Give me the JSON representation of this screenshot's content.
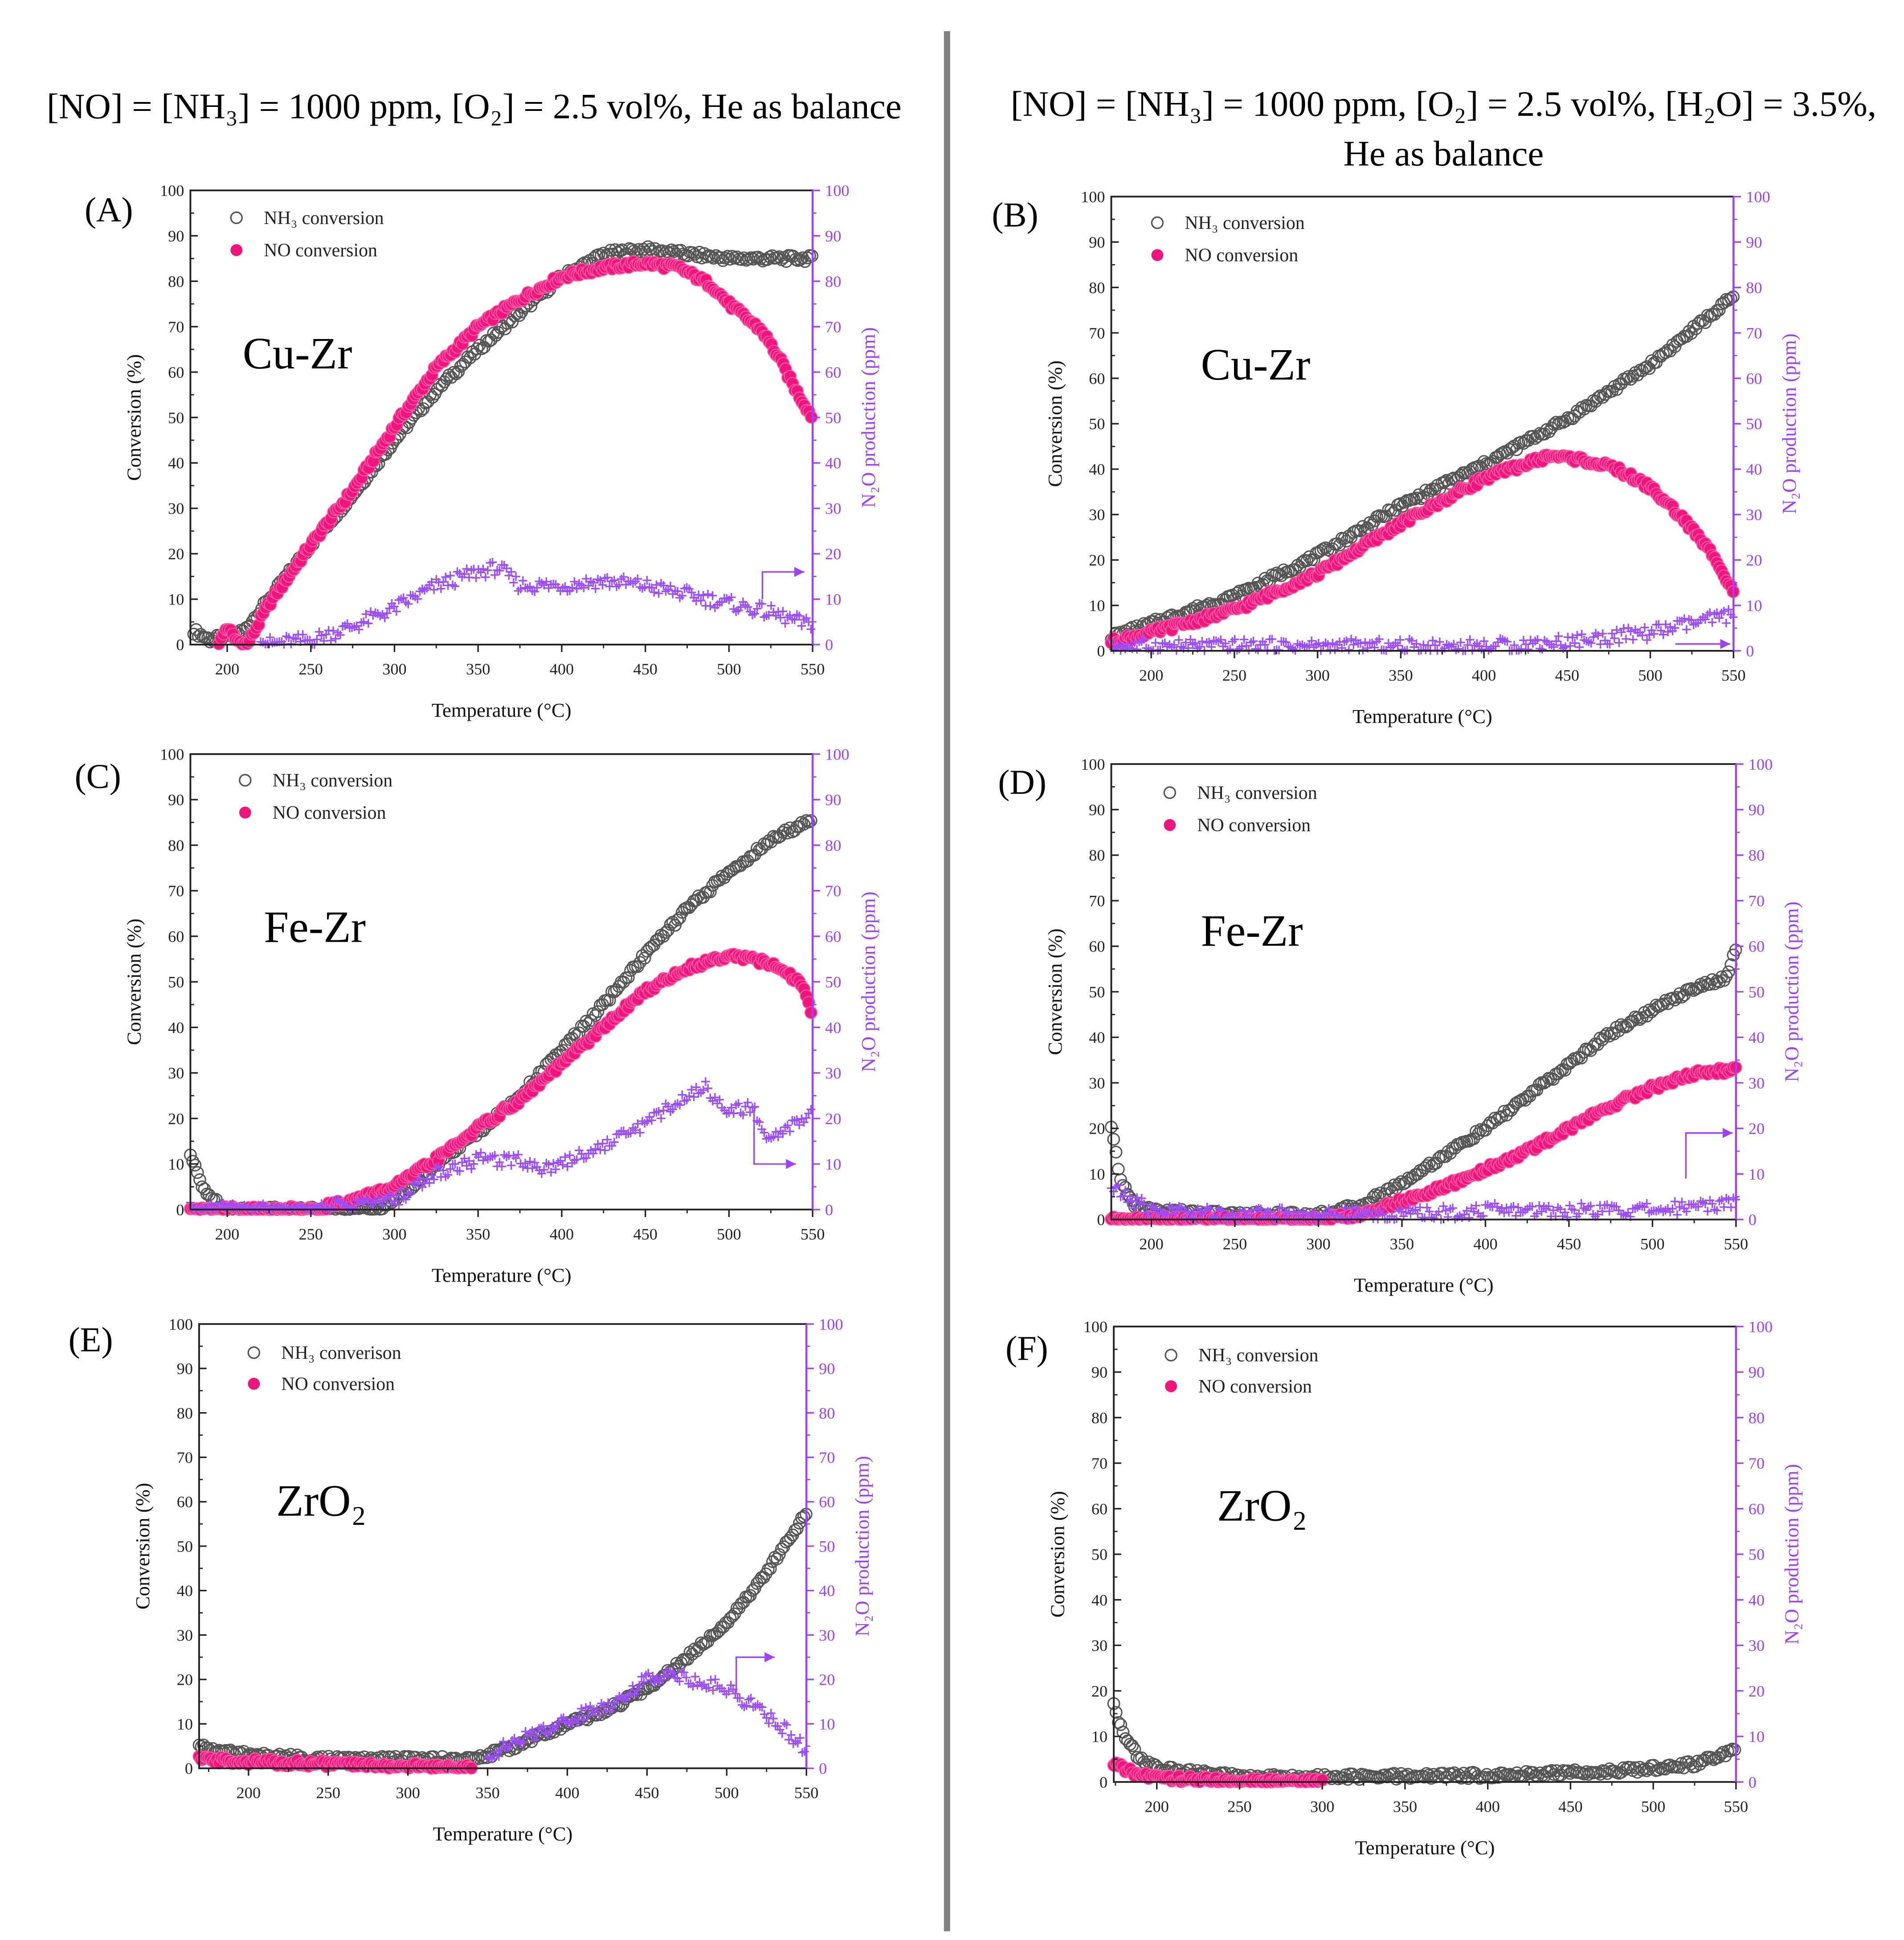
{
  "headers": {
    "left": "[NO] = [NH₃] = 1000 ppm, [O₂] = 2.5 vol%, He as balance",
    "right_line1": "[NO] = [NH₃] = 1000 ppm, [O₂] = 2.5 vol%, [H₂O] = 3.5%,",
    "right_line2": "He as balance"
  },
  "colors": {
    "nh3": "#555555",
    "no": "#f0157d",
    "n2o": "#9b4dff",
    "right_axis": "#a040ff",
    "divider": "#808080"
  },
  "chart_data": [
    {
      "id": "A",
      "type": "scatter",
      "label": "(A)",
      "catalyst": "Cu-Zr",
      "xlabel": "Temperature (°C)",
      "ylabel": "Conversion (%)",
      "y2label": "N₂O production (ppm)",
      "legend": [
        "NH₃ conversion",
        "NO conversion"
      ],
      "xlim": [
        178,
        550
      ],
      "ylim": [
        0,
        100
      ],
      "y2lim": [
        0,
        100
      ],
      "xticks": [
        200,
        250,
        300,
        350,
        400,
        450,
        500,
        550
      ],
      "yticks": [
        0,
        10,
        20,
        30,
        40,
        50,
        60,
        70,
        80,
        90,
        100
      ],
      "series": [
        {
          "name": "NH3 conversion",
          "x": [
            180,
            190,
            200,
            210,
            225,
            250,
            275,
            300,
            325,
            350,
            375,
            400,
            425,
            450,
            475,
            500,
            550
          ],
          "y": [
            3,
            1,
            2,
            3,
            10,
            22,
            33,
            45,
            56,
            65,
            73,
            81,
            86,
            87,
            86,
            85,
            85
          ]
        },
        {
          "name": "NO conversion",
          "x": [
            195,
            200,
            205,
            212,
            225,
            250,
            275,
            300,
            325,
            350,
            375,
            400,
            425,
            450,
            470,
            490,
            500,
            520,
            530,
            540,
            550
          ],
          "y": [
            0,
            4,
            1,
            0,
            9,
            22,
            34,
            48,
            61,
            70,
            76,
            81,
            83,
            84,
            83,
            79,
            75,
            69,
            63,
            56,
            50
          ]
        },
        {
          "name": "N2O production",
          "x": [
            220,
            250,
            275,
            300,
            325,
            350,
            362,
            375,
            400,
            425,
            450,
            475,
            500,
            525,
            550
          ],
          "y": [
            0,
            1,
            4,
            8,
            13,
            16,
            17,
            13,
            13,
            14,
            13,
            11,
            9,
            7,
            4
          ]
        }
      ]
    },
    {
      "id": "B",
      "type": "scatter",
      "label": "(B)",
      "catalyst": "Cu-Zr",
      "xlabel": "Temperature (°C)",
      "ylabel": "Conversion (%)",
      "y2label": "N₂O production (ppm)",
      "legend": [
        "NH₃ conversion",
        "NO conversion"
      ],
      "xlim": [
        176,
        550
      ],
      "ylim": [
        0,
        100
      ],
      "y2lim": [
        0,
        100
      ],
      "xticks": [
        200,
        250,
        300,
        350,
        400,
        450,
        500,
        550
      ],
      "yticks": [
        0,
        10,
        20,
        30,
        40,
        50,
        60,
        70,
        80,
        90,
        100
      ],
      "series": [
        {
          "name": "NH3 conversion",
          "x": [
            176,
            200,
            250,
            300,
            350,
            400,
            450,
            500,
            550
          ],
          "y": [
            3,
            6,
            12,
            21,
            32,
            41,
            51,
            63,
            78
          ]
        },
        {
          "name": "NO conversion",
          "x": [
            176,
            200,
            250,
            300,
            350,
            400,
            440,
            460,
            480,
            500,
            520,
            540,
            550
          ],
          "y": [
            2,
            4,
            9,
            17,
            28,
            38,
            43,
            42,
            40,
            36,
            29,
            20,
            13
          ]
        },
        {
          "name": "N2O production",
          "x": [
            176,
            300,
            400,
            450,
            500,
            550
          ],
          "y": [
            1,
            1,
            1,
            2,
            4,
            8
          ]
        }
      ]
    },
    {
      "id": "C",
      "type": "scatter",
      "label": "(C)",
      "catalyst": "Fe-Zr",
      "xlabel": "Temperature (°C)",
      "ylabel": "Conversion (%)",
      "y2label": "N₂O production (ppm)",
      "legend": [
        "NH₃ conversion",
        "NO conversion"
      ],
      "xlim": [
        178,
        550
      ],
      "ylim": [
        0,
        100
      ],
      "y2lim": [
        0,
        100
      ],
      "xticks": [
        200,
        250,
        300,
        350,
        400,
        450,
        500,
        550
      ],
      "yticks": [
        0,
        10,
        20,
        30,
        40,
        50,
        60,
        70,
        80,
        90,
        100
      ],
      "series": [
        {
          "name": "NH3 conversion",
          "x": [
            178,
            185,
            195,
            200,
            250,
            290,
            300,
            325,
            350,
            375,
            400,
            425,
            450,
            475,
            500,
            525,
            550
          ],
          "y": [
            12,
            5,
            1,
            0,
            0,
            0,
            2,
            10,
            17,
            25,
            35,
            45,
            56,
            66,
            74,
            81,
            86
          ]
        },
        {
          "name": "NO conversion",
          "x": [
            178,
            250,
            275,
            300,
            325,
            350,
            375,
            400,
            425,
            450,
            475,
            500,
            515,
            530,
            545,
            550
          ],
          "y": [
            0,
            0,
            2,
            5,
            11,
            18,
            24,
            32,
            40,
            48,
            53,
            56,
            55,
            53,
            49,
            42
          ]
        },
        {
          "name": "N2O production",
          "x": [
            178,
            250,
            300,
            325,
            350,
            375,
            390,
            425,
            450,
            475,
            485,
            500,
            515,
            525,
            535,
            550
          ],
          "y": [
            0,
            0,
            2,
            8,
            11,
            11,
            9,
            14,
            19,
            25,
            27,
            22,
            22,
            15,
            18,
            21
          ]
        }
      ]
    },
    {
      "id": "D",
      "type": "scatter",
      "label": "(D)",
      "catalyst": "Fe-Zr",
      "xlabel": "Temperature (°C)",
      "ylabel": "Conversion (%)",
      "y2label": "N₂O production (ppm)",
      "legend": [
        "NH₃ conversion",
        "NO conversion"
      ],
      "xlim": [
        176,
        550
      ],
      "ylim": [
        0,
        100
      ],
      "y2lim": [
        0,
        100
      ],
      "xticks": [
        200,
        250,
        300,
        350,
        400,
        450,
        500,
        550
      ],
      "yticks": [
        0,
        10,
        20,
        30,
        40,
        50,
        60,
        70,
        80,
        90,
        100
      ],
      "series": [
        {
          "name": "NH3 conversion",
          "x": [
            176,
            182,
            190,
            200,
            250,
            300,
            325,
            350,
            375,
            400,
            425,
            450,
            475,
            500,
            525,
            545,
            550
          ],
          "y": [
            20,
            8,
            3,
            2,
            1,
            1,
            3,
            8,
            14,
            20,
            27,
            34,
            41,
            46,
            51,
            53,
            60
          ]
        },
        {
          "name": "NO conversion",
          "x": [
            176,
            300,
            325,
            350,
            375,
            400,
            425,
            450,
            475,
            500,
            525,
            550
          ],
          "y": [
            0,
            0,
            1,
            4,
            7,
            11,
            15,
            20,
            25,
            29,
            32,
            33
          ]
        },
        {
          "name": "N2O production",
          "x": [
            176,
            185,
            200,
            250,
            350,
            400,
            450,
            500,
            550
          ],
          "y": [
            7,
            5,
            2,
            1,
            1,
            2,
            2,
            2,
            4
          ]
        }
      ]
    },
    {
      "id": "E",
      "type": "scatter",
      "label": "(E)",
      "catalyst": "ZrO₂",
      "xlabel": "Temperature (°C)",
      "ylabel": "Conversion (%)",
      "y2label": "N₂O production (ppm)",
      "legend": [
        "NH₃ converison",
        "NO conversion"
      ],
      "xlim": [
        169,
        550
      ],
      "ylim": [
        0,
        100
      ],
      "y2lim": [
        0,
        100
      ],
      "xticks": [
        200,
        250,
        300,
        350,
        400,
        450,
        500,
        550
      ],
      "yticks": [
        0,
        10,
        20,
        30,
        40,
        50,
        60,
        70,
        80,
        90,
        100
      ],
      "series": [
        {
          "name": "NH3 conversion",
          "x": [
            169,
            180,
            200,
            250,
            300,
            340,
            360,
            400,
            425,
            450,
            475,
            500,
            525,
            545,
            550
          ],
          "y": [
            5,
            4,
            3,
            2,
            2,
            2,
            4,
            10,
            13,
            18,
            25,
            33,
            44,
            55,
            57
          ]
        },
        {
          "name": "NO conversion",
          "x": [
            169,
            200,
            250,
            300,
            340
          ],
          "y": [
            2,
            1.5,
            1,
            0.5,
            0
          ]
        },
        {
          "name": "N2O production",
          "x": [
            350,
            375,
            400,
            425,
            450,
            465,
            475,
            500,
            525,
            545,
            550
          ],
          "y": [
            3,
            7,
            11,
            14,
            20,
            22,
            20,
            18,
            12,
            6,
            4
          ]
        }
      ]
    },
    {
      "id": "F",
      "type": "scatter",
      "label": "(F)",
      "catalyst": "ZrO₂",
      "xlabel": "Temperature (°C)",
      "ylabel": "Conversion (%)",
      "y2label": "N₂O production (ppm)",
      "legend": [
        "NH₃ conversion",
        "NO conversion"
      ],
      "xlim": [
        174,
        550
      ],
      "ylim": [
        0,
        100
      ],
      "y2lim": [
        0,
        100
      ],
      "xticks": [
        200,
        250,
        300,
        350,
        400,
        450,
        500,
        550
      ],
      "yticks": [
        0,
        10,
        20,
        30,
        40,
        50,
        60,
        70,
        80,
        90,
        100
      ],
      "series": [
        {
          "name": "NH3 conversion",
          "x": [
            174,
            180,
            190,
            200,
            250,
            300,
            400,
            450,
            500,
            525,
            550
          ],
          "y": [
            17,
            10,
            5,
            3,
            1,
            1,
            1.5,
            2,
            3,
            4,
            7
          ]
        },
        {
          "name": "NO conversion",
          "x": [
            174,
            185,
            200,
            250,
            300
          ],
          "y": [
            4,
            2,
            1,
            0,
            0
          ]
        }
      ]
    }
  ]
}
